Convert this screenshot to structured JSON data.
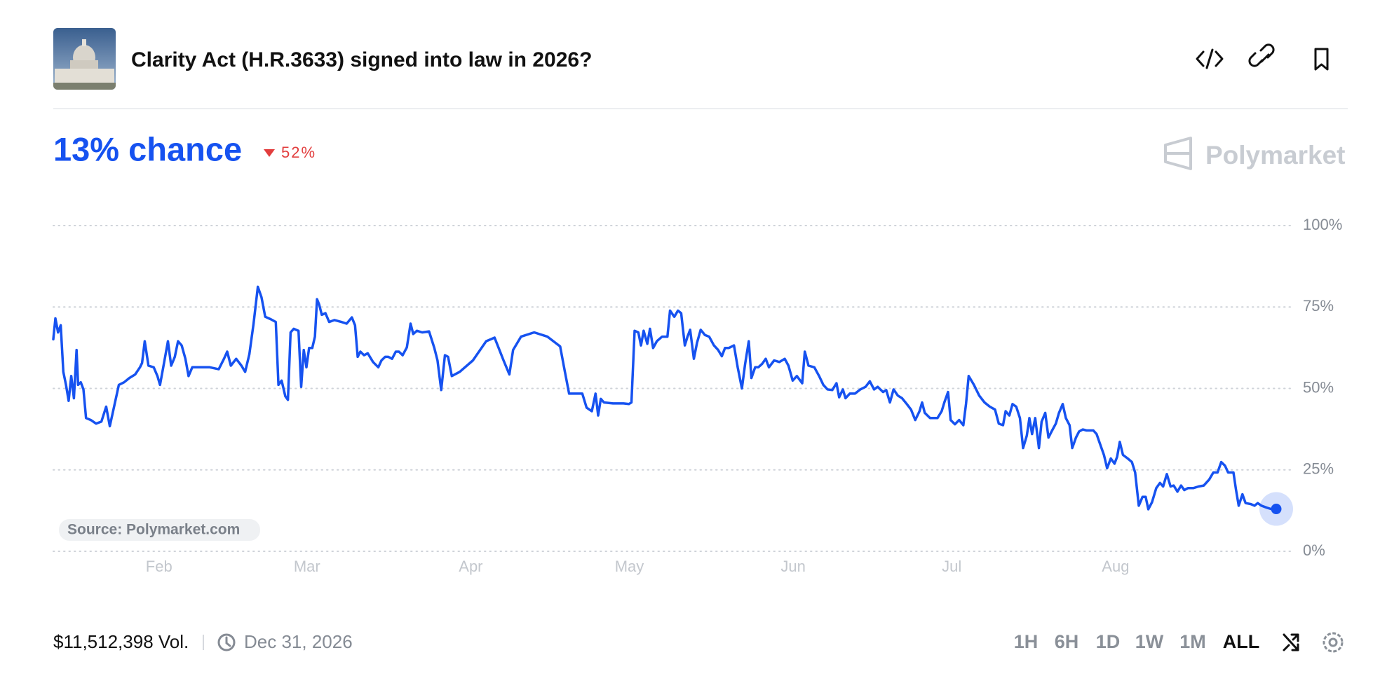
{
  "market": {
    "title": "Clarity Act (H.R.3633) signed into law in 2026?",
    "probability_label": "13% chance",
    "change": "52%",
    "brand": "Polymarket",
    "source": "Source: Polymarket.com",
    "volume": "$11,512,398 Vol.",
    "end_date": "Dec 31, 2026",
    "ranges": [
      "1H",
      "6H",
      "1D",
      "1W",
      "1M",
      "ALL"
    ]
  },
  "chart_data": {
    "type": "line",
    "color": "#1652f0",
    "grid": true,
    "xlim": [
      -20,
      211.4
    ],
    "xticks": [
      {
        "value": 0,
        "label": "Feb"
      },
      {
        "value": 28,
        "label": "Mar"
      },
      {
        "value": 59,
        "label": "Apr"
      },
      {
        "value": 89,
        "label": "May"
      },
      {
        "value": 120,
        "label": "Jun"
      },
      {
        "value": 150,
        "label": "Jul"
      },
      {
        "value": 181,
        "label": "Aug"
      }
    ],
    "ylim": [
      0,
      100
    ],
    "yticks": [
      {
        "value": 0,
        "label": "0%"
      },
      {
        "value": 25,
        "label": "25%"
      },
      {
        "value": 50,
        "label": "50%"
      },
      {
        "value": 75,
        "label": "75%"
      },
      {
        "value": 100,
        "label": "100%"
      }
    ],
    "x": [
      -20,
      -19.6,
      -19.1,
      -18.6,
      -18.1,
      -17.6,
      -17.1,
      -16.6,
      -16.1,
      -15.6,
      -15.3,
      -14.8,
      -14.3,
      -13.8,
      -12.9,
      -11.9,
      -10.9,
      -10,
      -9.3,
      -8.5,
      -7.6,
      -6.6,
      -5.6,
      -4.5,
      -3.6,
      -3.2,
      -2.7,
      -2,
      -1,
      -0.3,
      0.2,
      0.8,
      1.7,
      2.3,
      3,
      3.6,
      4.3,
      5,
      5.6,
      6.3,
      7.6,
      9.6,
      11.3,
      12.3,
      12.9,
      13.6,
      14.6,
      15.6,
      16.3,
      17.1,
      17.9,
      18.7,
      19.4,
      20.1,
      21.2,
      22.1,
      22.6,
      23.2,
      23.9,
      24.4,
      24.9,
      25.5,
      26.4,
      26.9,
      27.4,
      27.9,
      28.4,
      29,
      29.5,
      29.9,
      30.3,
      30.8,
      31.5,
      32.2,
      33.2,
      34.5,
      35.5,
      36.5,
      37.1,
      37.6,
      38.1,
      38.8,
      39.5,
      40.5,
      41.5,
      42.1,
      42.8,
      43.4,
      44.1,
      44.8,
      45.4,
      46.1,
      46.9,
      47.6,
      48.1,
      48.8,
      49.8,
      51.1,
      52.1,
      52.7,
      53.4,
      54.1,
      54.7,
      55.4,
      56.9,
      59.4,
      61.9,
      63.5,
      65.2,
      66.3,
      67,
      68.5,
      71,
      73.5,
      75.9,
      76.8,
      77.6,
      80.1,
      80.9,
      81.9,
      82.6,
      83.1,
      83.6,
      84.2,
      85.9,
      87.9,
      88.9,
      89.4,
      90,
      90.7,
      91.2,
      91.7,
      92.4,
      92.9,
      93.5,
      94.2,
      95.2,
      96.2,
      96.7,
      97.5,
      98.2,
      98.8,
      99.5,
      100,
      100.5,
      101.2,
      101.8,
      102.5,
      103.3,
      104.1,
      105,
      105.8,
      106.5,
      107.1,
      107.8,
      108.8,
      109.5,
      110.3,
      110.9,
      111.6,
      112.1,
      112.8,
      113.4,
      114.1,
      114.8,
      115.4,
      116.4,
      117.4,
      118.4,
      119.1,
      119.9,
      120.7,
      121.7,
      122.2,
      122.9,
      124,
      124.9,
      125.7,
      126.5,
      127.4,
      128.2,
      128.7,
      129.4,
      129.9,
      130.7,
      131.7,
      132.7,
      133.7,
      134.5,
      135.3,
      136,
      137,
      137.6,
      138.3,
      139,
      139.8,
      140.6,
      141.5,
      142.3,
      143.1,
      143.9,
      144.4,
      144.9,
      145.9,
      147.3,
      148.1,
      148.6,
      149.3,
      149.8,
      150.6,
      151.4,
      152.2,
      152.7,
      153.2,
      154.2,
      155.2,
      156.2,
      157.2,
      158.2,
      158.9,
      159.7,
      160.2,
      160.9,
      161.5,
      162.2,
      162.9,
      163.5,
      164.2,
      164.7,
      165.2,
      165.8,
      166.5,
      167,
      167.7,
      168.3,
      169,
      169.7,
      170.3,
      171,
      171.6,
      172.3,
      172.8,
      173.5,
      174.1,
      174.8,
      175.5,
      176.8,
      177.4,
      178.1,
      178.8,
      179.4,
      180.1,
      180.8,
      181.3,
      181.8,
      182.4,
      183.3,
      184.1,
      184.7,
      185.4,
      186.1,
      186.7,
      187.2,
      187.9,
      188.7,
      189.4,
      190,
      190.7,
      191.4,
      192,
      192.7,
      193.4,
      194,
      194.7,
      195.7,
      196.7,
      197.7,
      198.7,
      199.5,
      200.3,
      201,
      201.7,
      202.3,
      203.3,
      203.8,
      204.3,
      205,
      205.6,
      206.6,
      207.3,
      207.9,
      208.6,
      209.6,
      210.6,
      211.4
    ],
    "values": [
      65.1,
      71.5,
      67.2,
      69.4,
      55.1,
      51.1,
      46.2,
      53.8,
      47,
      61.8,
      51.1,
      51.9,
      49.7,
      40.9,
      40.3,
      39.2,
      39.8,
      44.4,
      38.4,
      44.4,
      51.1,
      51.9,
      53.2,
      54.3,
      56.5,
      57.8,
      64.5,
      57,
      56.5,
      53.8,
      51.1,
      56.5,
      64.5,
      57,
      59.7,
      64.5,
      63.2,
      59.1,
      53.8,
      56.5,
      56.5,
      56.5,
      55.9,
      59.1,
      61.3,
      57,
      59.1,
      57,
      55.1,
      60.5,
      69.9,
      81.2,
      78,
      72,
      71.2,
      70.4,
      51.1,
      52.4,
      47.6,
      46.5,
      67.2,
      68.3,
      67.7,
      50.5,
      61.8,
      56.5,
      62.4,
      62.4,
      65.9,
      77.4,
      75.8,
      72.6,
      73.1,
      70.4,
      71,
      70.4,
      69.9,
      71.8,
      69.4,
      59.7,
      61.3,
      60.2,
      60.8,
      58.1,
      56.5,
      58.6,
      59.7,
      59.7,
      59.1,
      61.3,
      61.3,
      60.2,
      62.6,
      69.9,
      66.7,
      67.7,
      67.2,
      67.5,
      62.4,
      58.6,
      49.5,
      60.2,
      59.7,
      53.8,
      55.1,
      58.6,
      64.5,
      65.6,
      58.6,
      54.3,
      61.8,
      65.9,
      67.2,
      65.9,
      62.9,
      55.1,
      48.4,
      48.4,
      44.1,
      43,
      48.4,
      41.7,
      46.8,
      45.7,
      45.4,
      45.4,
      45.2,
      45.7,
      67.7,
      67.2,
      63.2,
      67.7,
      63.7,
      68.3,
      62.4,
      64.5,
      65.9,
      65.9,
      73.9,
      72,
      73.9,
      73.1,
      63.2,
      65.9,
      68,
      59.1,
      64,
      68,
      66.4,
      65.9,
      63.2,
      61.8,
      59.9,
      62.4,
      62.4,
      63.2,
      56.5,
      50,
      57.5,
      64.5,
      53.2,
      56.5,
      56.5,
      57.5,
      59.1,
      56.5,
      58.6,
      58.1,
      59.1,
      57,
      52.4,
      53.8,
      51.6,
      61.3,
      57,
      56.5,
      53.8,
      51.1,
      49.7,
      49.5,
      51.6,
      47.3,
      49.7,
      47,
      48.4,
      48.4,
      49.7,
      50.5,
      52.2,
      49.7,
      50.5,
      48.9,
      49.5,
      45.7,
      49.7,
      47.8,
      47,
      45.2,
      43.5,
      40.3,
      43,
      45.7,
      42.5,
      40.9,
      40.9,
      43,
      45.7,
      48.9,
      40.3,
      39,
      40.3,
      38.7,
      45.2,
      53.8,
      51.1,
      47.8,
      45.7,
      44.4,
      43.5,
      39.2,
      38.7,
      43,
      41.7,
      45.2,
      44.4,
      40.9,
      31.7,
      35.5,
      40.9,
      36,
      40.9,
      31.7,
      39.8,
      42.5,
      34.9,
      37.1,
      39.2,
      42.5,
      45.2,
      40.9,
      38.7,
      31.7,
      34.9,
      36.8,
      37.4,
      37.1,
      37.1,
      36,
      32.8,
      29.6,
      25.5,
      28.5,
      26.9,
      29,
      33.6,
      29.6,
      28.5,
      27.4,
      24.2,
      14,
      16.7,
      16.7,
      12.9,
      15.1,
      19.4,
      21,
      19.9,
      23.7,
      19.9,
      20.2,
      18.3,
      20.2,
      18.8,
      19.4,
      19.4,
      19.9,
      20.2,
      22,
      24.2,
      24.2,
      27.4,
      26.3,
      24.2,
      24.2,
      18.8,
      14,
      17.5,
      14.8,
      14.5,
      14,
      14.8,
      14,
      13.4,
      12.9,
      13
    ]
  }
}
